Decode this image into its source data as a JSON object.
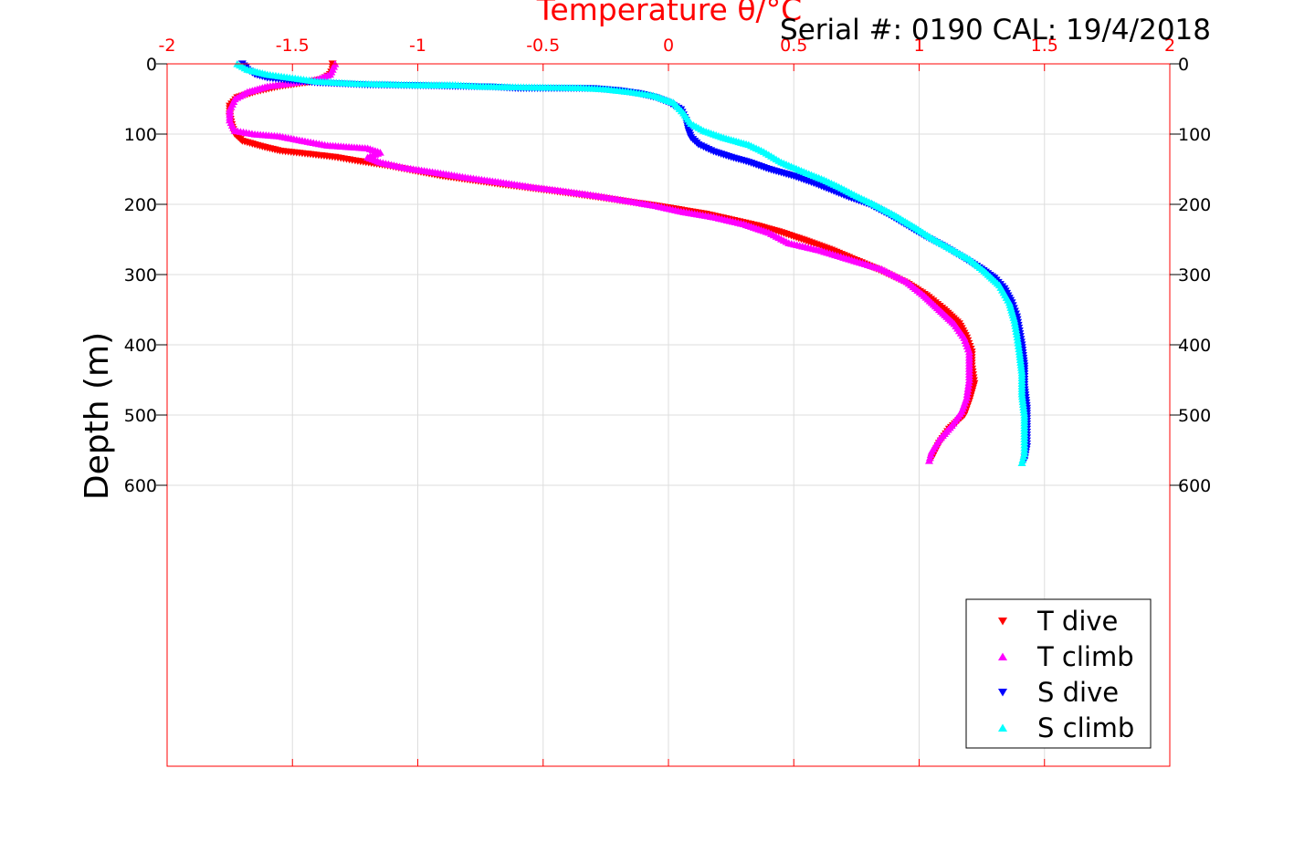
{
  "chart_data": {
    "type": "scatter",
    "title": "Temperature θ/°C",
    "annotation": "Serial #: 0190  CAL: 19/4/2018",
    "ylabel": "Depth (m)",
    "xlim": [
      -2,
      2
    ],
    "ylim": [
      0,
      1000
    ],
    "x_ticks": [
      "-2",
      "-1.5",
      "-1",
      "-0.5",
      "0",
      "0.5",
      "1",
      "1.5",
      "2"
    ],
    "y_ticks": [
      "0",
      "100",
      "200",
      "300",
      "400",
      "500",
      "600"
    ],
    "grid": true,
    "legend_position": "bottom-right",
    "colors": {
      "axis": "#ff0000",
      "grid": "#dddddd"
    },
    "series": [
      {
        "name": "T dive",
        "marker": "triangle-down",
        "color": "#ff0000",
        "points": [
          [
            -1.34,
            0
          ],
          [
            -1.34,
            8
          ],
          [
            -1.35,
            15
          ],
          [
            -1.38,
            22
          ],
          [
            -1.45,
            27
          ],
          [
            -1.55,
            32
          ],
          [
            -1.65,
            40
          ],
          [
            -1.72,
            48
          ],
          [
            -1.75,
            60
          ],
          [
            -1.75,
            75
          ],
          [
            -1.74,
            90
          ],
          [
            -1.73,
            100
          ],
          [
            -1.7,
            110
          ],
          [
            -1.62,
            118
          ],
          [
            -1.55,
            124
          ],
          [
            -1.45,
            128
          ],
          [
            -1.33,
            133
          ],
          [
            -1.25,
            138
          ],
          [
            -1.12,
            145
          ],
          [
            -1.02,
            152
          ],
          [
            -0.9,
            160
          ],
          [
            -0.78,
            166
          ],
          [
            -0.66,
            172
          ],
          [
            -0.55,
            177
          ],
          [
            -0.4,
            184
          ],
          [
            -0.28,
            190
          ],
          [
            -0.15,
            197
          ],
          [
            -0.05,
            202
          ],
          [
            0.05,
            208
          ],
          [
            0.15,
            214
          ],
          [
            0.25,
            222
          ],
          [
            0.35,
            230
          ],
          [
            0.45,
            240
          ],
          [
            0.55,
            252
          ],
          [
            0.65,
            265
          ],
          [
            0.75,
            280
          ],
          [
            0.85,
            295
          ],
          [
            0.95,
            312
          ],
          [
            1.03,
            330
          ],
          [
            1.1,
            350
          ],
          [
            1.16,
            370
          ],
          [
            1.19,
            390
          ],
          [
            1.21,
            410
          ],
          [
            1.21,
            430
          ],
          [
            1.22,
            455
          ],
          [
            1.2,
            480
          ],
          [
            1.18,
            500
          ],
          [
            1.12,
            520
          ],
          [
            1.08,
            540
          ],
          [
            1.05,
            562
          ]
        ]
      },
      {
        "name": "T climb",
        "marker": "triangle-up",
        "color": "#ff00ff",
        "points": [
          [
            -1.33,
            0
          ],
          [
            -1.34,
            8
          ],
          [
            -1.35,
            15
          ],
          [
            -1.4,
            22
          ],
          [
            -1.5,
            27
          ],
          [
            -1.6,
            32
          ],
          [
            -1.68,
            40
          ],
          [
            -1.73,
            50
          ],
          [
            -1.75,
            65
          ],
          [
            -1.75,
            80
          ],
          [
            -1.73,
            95
          ],
          [
            -1.65,
            100
          ],
          [
            -1.55,
            103
          ],
          [
            -1.45,
            110
          ],
          [
            -1.36,
            116
          ],
          [
            -1.2,
            120
          ],
          [
            -1.15,
            126
          ],
          [
            -1.2,
            133
          ],
          [
            -1.15,
            140
          ],
          [
            -1.05,
            148
          ],
          [
            -0.92,
            155
          ],
          [
            -0.8,
            162
          ],
          [
            -0.68,
            168
          ],
          [
            -0.55,
            175
          ],
          [
            -0.42,
            181
          ],
          [
            -0.3,
            187
          ],
          [
            -0.18,
            194
          ],
          [
            -0.05,
            202
          ],
          [
            0.05,
            210
          ],
          [
            0.18,
            218
          ],
          [
            0.3,
            228
          ],
          [
            0.4,
            240
          ],
          [
            0.48,
            255
          ],
          [
            0.6,
            265
          ],
          [
            0.72,
            278
          ],
          [
            0.85,
            292
          ],
          [
            0.95,
            310
          ],
          [
            1.02,
            330
          ],
          [
            1.08,
            350
          ],
          [
            1.14,
            370
          ],
          [
            1.18,
            390
          ],
          [
            1.2,
            410
          ],
          [
            1.2,
            430
          ],
          [
            1.2,
            450
          ],
          [
            1.19,
            475
          ],
          [
            1.17,
            495
          ],
          [
            1.13,
            515
          ],
          [
            1.08,
            535
          ],
          [
            1.05,
            552
          ],
          [
            1.04,
            565
          ]
        ]
      },
      {
        "name": "S dive",
        "marker": "triangle-down",
        "color": "#0000ff",
        "points": [
          [
            -1.7,
            0
          ],
          [
            -1.68,
            8
          ],
          [
            -1.65,
            15
          ],
          [
            -1.6,
            20
          ],
          [
            -1.5,
            24
          ],
          [
            -1.4,
            27
          ],
          [
            -1.2,
            30
          ],
          [
            -1.0,
            31
          ],
          [
            -0.85,
            32
          ],
          [
            -0.7,
            33
          ],
          [
            -0.6,
            35
          ],
          [
            -0.3,
            35
          ],
          [
            -0.2,
            38
          ],
          [
            -0.12,
            42
          ],
          [
            -0.05,
            48
          ],
          [
            0.0,
            55
          ],
          [
            0.05,
            65
          ],
          [
            0.07,
            80
          ],
          [
            0.08,
            95
          ],
          [
            0.09,
            105
          ],
          [
            0.12,
            115
          ],
          [
            0.18,
            125
          ],
          [
            0.25,
            133
          ],
          [
            0.32,
            140
          ],
          [
            0.4,
            150
          ],
          [
            0.5,
            160
          ],
          [
            0.58,
            170
          ],
          [
            0.65,
            180
          ],
          [
            0.72,
            190
          ],
          [
            0.8,
            200
          ],
          [
            0.88,
            215
          ],
          [
            0.95,
            230
          ],
          [
            1.02,
            245
          ],
          [
            1.1,
            260
          ],
          [
            1.17,
            275
          ],
          [
            1.24,
            290
          ],
          [
            1.3,
            305
          ],
          [
            1.34,
            320
          ],
          [
            1.37,
            340
          ],
          [
            1.39,
            360
          ],
          [
            1.4,
            380
          ],
          [
            1.41,
            400
          ],
          [
            1.42,
            430
          ],
          [
            1.42,
            460
          ],
          [
            1.43,
            490
          ],
          [
            1.43,
            520
          ],
          [
            1.43,
            545
          ],
          [
            1.42,
            565
          ]
        ]
      },
      {
        "name": "S climb",
        "marker": "triangle-up",
        "color": "#00ffff",
        "points": [
          [
            -1.72,
            0
          ],
          [
            -1.68,
            8
          ],
          [
            -1.6,
            15
          ],
          [
            -1.5,
            20
          ],
          [
            -1.4,
            25
          ],
          [
            -1.25,
            28
          ],
          [
            -1.0,
            30
          ],
          [
            -0.85,
            30
          ],
          [
            -0.75,
            32
          ],
          [
            -0.6,
            33
          ],
          [
            -0.35,
            34
          ],
          [
            -0.25,
            36
          ],
          [
            -0.15,
            40
          ],
          [
            -0.06,
            45
          ],
          [
            0.02,
            55
          ],
          [
            0.06,
            70
          ],
          [
            0.09,
            85
          ],
          [
            0.14,
            95
          ],
          [
            0.22,
            105
          ],
          [
            0.32,
            115
          ],
          [
            0.38,
            125
          ],
          [
            0.45,
            140
          ],
          [
            0.55,
            155
          ],
          [
            0.62,
            165
          ],
          [
            0.68,
            175
          ],
          [
            0.75,
            188
          ],
          [
            0.82,
            200
          ],
          [
            0.9,
            215
          ],
          [
            0.98,
            232
          ],
          [
            1.05,
            248
          ],
          [
            1.12,
            262
          ],
          [
            1.2,
            278
          ],
          [
            1.26,
            295
          ],
          [
            1.32,
            315
          ],
          [
            1.36,
            340
          ],
          [
            1.38,
            365
          ],
          [
            1.39,
            385
          ],
          [
            1.4,
            410
          ],
          [
            1.41,
            440
          ],
          [
            1.41,
            470
          ],
          [
            1.42,
            500
          ],
          [
            1.42,
            530
          ],
          [
            1.42,
            555
          ],
          [
            1.41,
            568
          ]
        ]
      }
    ]
  }
}
